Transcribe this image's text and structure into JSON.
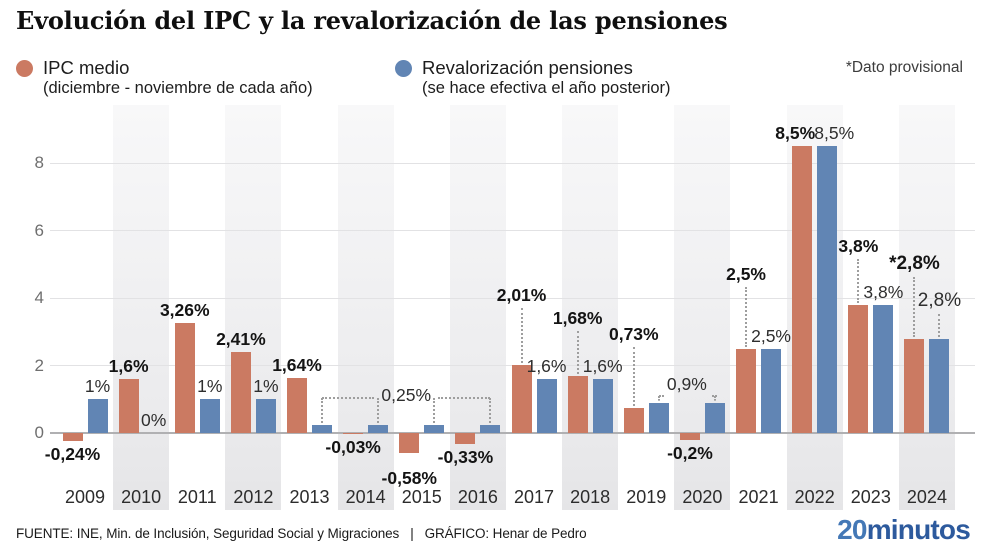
{
  "header": {
    "title": "Evolución del IPC y la revalorización de las pensiones",
    "provisional_note": "*Dato provisional"
  },
  "legend": [
    {
      "label": "IPC medio",
      "sublabel": "(diciembre - noviembre de cada año)",
      "color": "#cb7a62"
    },
    {
      "label": "Revalorización pensiones",
      "sublabel": "(se hace efectiva el año posterior)",
      "color": "#6185b4"
    }
  ],
  "footer": {
    "source": "FUENTE: INE, Min. de Inclusión, Seguridad Social y Migraciones",
    "separator": "|",
    "credit": "GRÁFICO: Henar de Pedro",
    "logo": {
      "part1": "20",
      "part2": "minutos",
      "color1": "#4478b6",
      "color2": "#2d5a9d"
    }
  },
  "chart_data": {
    "type": "bar",
    "title": "Evolución del IPC y la revalorización de las pensiones",
    "categories": [
      "2009",
      "2010",
      "2011",
      "2012",
      "2013",
      "2014",
      "2015",
      "2016",
      "2017",
      "2018",
      "2019",
      "2020",
      "2021",
      "2022",
      "2023",
      "2024"
    ],
    "series": [
      {
        "name": "IPC medio",
        "color": "#cb7a62",
        "values": [
          -0.24,
          1.6,
          3.26,
          2.41,
          1.64,
          -0.03,
          -0.58,
          -0.33,
          2.01,
          1.68,
          0.73,
          -0.2,
          2.5,
          8.5,
          3.8,
          2.8
        ],
        "labels": [
          "-0,24%",
          "1,6%",
          "3,26%",
          "2,41%",
          "1,64%",
          "-0,03%",
          "-0,58%",
          "-0,33%",
          "2,01%",
          "1,68%",
          "0,73%",
          "-0,2%",
          "2,5%",
          "8,5%",
          "3,8%",
          "*2,8%"
        ]
      },
      {
        "name": "Revalorización pensiones",
        "color": "#6185b4",
        "values": [
          1,
          0,
          1,
          1,
          0.25,
          0.25,
          0.25,
          0.25,
          1.6,
          1.6,
          0.9,
          0.9,
          2.5,
          8.5,
          3.8,
          2.8
        ],
        "labels": [
          "1%",
          "0%",
          "1%",
          "1%",
          "",
          "",
          "",
          "",
          "1,6%",
          "1,6%",
          "",
          "",
          "2,5%",
          "8,5%",
          "3,8%",
          "2,8%"
        ]
      }
    ],
    "shared_value_labels": [
      {
        "series": "Revalorización pensiones",
        "text": "0,25%",
        "value": 0.25,
        "from_year": "2013",
        "to_year": "2016"
      },
      {
        "series": "Revalorización pensiones",
        "text": "0,9%",
        "value": 0.9,
        "from_year": "2019",
        "to_year": "2020"
      }
    ],
    "yticks": [
      0,
      2,
      4,
      6,
      8
    ],
    "ylim": [
      -1.2,
      9.2
    ],
    "grid": true,
    "legend_position": "top",
    "band_alternate_years": true,
    "xlabel": "",
    "ylabel": ""
  }
}
